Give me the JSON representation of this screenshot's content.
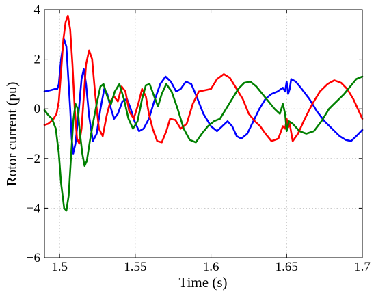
{
  "chart_data": {
    "type": "line",
    "xlabel": "Time (s)",
    "ylabel": "Rotor current  (pu)",
    "xlim": [
      1.49,
      1.7
    ],
    "ylim": [
      -6,
      4
    ],
    "grid": true,
    "x_ticks": [
      1.5,
      1.55,
      1.6,
      1.65,
      1.7
    ],
    "x_tick_labels": [
      "1.5",
      "1.55",
      "1.6",
      "1.65",
      "1.7"
    ],
    "y_ticks": [
      -6,
      -4,
      -2,
      0,
      2,
      4
    ],
    "y_tick_labels": [
      "−6",
      "−4",
      "−2",
      "0",
      "2",
      "4"
    ],
    "series": [
      {
        "color": "#0000ff",
        "points": [
          [
            1.49,
            0.7
          ],
          [
            1.494,
            0.75
          ],
          [
            1.497,
            0.8
          ],
          [
            1.4985,
            0.8
          ],
          [
            1.4995,
            1.0
          ],
          [
            1.501,
            2.0
          ],
          [
            1.503,
            2.8
          ],
          [
            1.5045,
            2.5
          ],
          [
            1.506,
            1.0
          ],
          [
            1.507,
            0.0
          ],
          [
            1.508,
            -1.2
          ],
          [
            1.509,
            -1.8
          ],
          [
            1.5105,
            -1.4
          ],
          [
            1.5125,
            -0.2
          ],
          [
            1.5145,
            1.2
          ],
          [
            1.516,
            1.6
          ],
          [
            1.5175,
            1.0
          ],
          [
            1.5195,
            -0.3
          ],
          [
            1.522,
            -1.3
          ],
          [
            1.5245,
            -1.0
          ],
          [
            1.527,
            0.0
          ],
          [
            1.5295,
            0.8
          ],
          [
            1.5315,
            0.6
          ],
          [
            1.5335,
            0.1
          ],
          [
            1.536,
            -0.4
          ],
          [
            1.5385,
            -0.2
          ],
          [
            1.5415,
            0.3
          ],
          [
            1.5445,
            0.4
          ],
          [
            1.547,
            0.0
          ],
          [
            1.5495,
            -0.5
          ],
          [
            1.5525,
            -0.9
          ],
          [
            1.5555,
            -0.8
          ],
          [
            1.559,
            -0.4
          ],
          [
            1.5625,
            0.3
          ],
          [
            1.5665,
            1.0
          ],
          [
            1.57,
            1.3
          ],
          [
            1.5735,
            1.1
          ],
          [
            1.577,
            0.7
          ],
          [
            1.58,
            0.8
          ],
          [
            1.5835,
            1.1
          ],
          [
            1.587,
            1.0
          ],
          [
            1.5905,
            0.5
          ],
          [
            1.595,
            -0.2
          ],
          [
            1.6,
            -0.7
          ],
          [
            1.604,
            -0.9
          ],
          [
            1.6075,
            -0.7
          ],
          [
            1.611,
            -0.5
          ],
          [
            1.614,
            -0.7
          ],
          [
            1.617,
            -1.1
          ],
          [
            1.62,
            -1.2
          ],
          [
            1.624,
            -1.0
          ],
          [
            1.628,
            -0.5
          ],
          [
            1.632,
            0.0
          ],
          [
            1.636,
            0.4
          ],
          [
            1.64,
            0.6
          ],
          [
            1.644,
            0.7
          ],
          [
            1.6475,
            0.85
          ],
          [
            1.649,
            0.7
          ],
          [
            1.65,
            1.1
          ],
          [
            1.651,
            0.6
          ],
          [
            1.652,
            0.8
          ],
          [
            1.653,
            1.2
          ],
          [
            1.656,
            1.1
          ],
          [
            1.66,
            0.8
          ],
          [
            1.665,
            0.4
          ],
          [
            1.67,
            -0.1
          ],
          [
            1.675,
            -0.5
          ],
          [
            1.68,
            -0.8
          ],
          [
            1.685,
            -1.1
          ],
          [
            1.689,
            -1.25
          ],
          [
            1.6925,
            -1.3
          ],
          [
            1.696,
            -1.1
          ],
          [
            1.7,
            -0.85
          ]
        ]
      },
      {
        "color": "#ff0000",
        "points": [
          [
            1.49,
            -0.65
          ],
          [
            1.4925,
            -0.6
          ],
          [
            1.4955,
            -0.45
          ],
          [
            1.498,
            -0.2
          ],
          [
            1.4995,
            0.3
          ],
          [
            1.501,
            1.5
          ],
          [
            1.5025,
            2.8
          ],
          [
            1.504,
            3.5
          ],
          [
            1.5055,
            3.75
          ],
          [
            1.507,
            3.2
          ],
          [
            1.5085,
            1.8
          ],
          [
            1.51,
            0.0
          ],
          [
            1.5115,
            -1.2
          ],
          [
            1.513,
            -1.4
          ],
          [
            1.5145,
            -0.8
          ],
          [
            1.516,
            0.5
          ],
          [
            1.5175,
            1.8
          ],
          [
            1.5195,
            2.35
          ],
          [
            1.5215,
            2.0
          ],
          [
            1.5235,
            0.6
          ],
          [
            1.526,
            -0.8
          ],
          [
            1.5285,
            -1.1
          ],
          [
            1.531,
            -0.3
          ],
          [
            1.5335,
            0.3
          ],
          [
            1.536,
            0.5
          ],
          [
            1.5385,
            0.3
          ],
          [
            1.541,
            0.9
          ],
          [
            1.5435,
            0.7
          ],
          [
            1.546,
            -0.1
          ],
          [
            1.549,
            -0.4
          ],
          [
            1.552,
            0.2
          ],
          [
            1.5545,
            0.8
          ],
          [
            1.557,
            0.5
          ],
          [
            1.559,
            -0.2
          ],
          [
            1.5615,
            -0.8
          ],
          [
            1.5645,
            -1.3
          ],
          [
            1.5675,
            -1.35
          ],
          [
            1.5705,
            -0.9
          ],
          [
            1.573,
            -0.4
          ],
          [
            1.5765,
            -0.45
          ],
          [
            1.58,
            -0.8
          ],
          [
            1.584,
            -0.6
          ],
          [
            1.588,
            0.2
          ],
          [
            1.592,
            0.7
          ],
          [
            1.596,
            0.75
          ],
          [
            1.6,
            0.8
          ],
          [
            1.604,
            1.2
          ],
          [
            1.6085,
            1.4
          ],
          [
            1.6125,
            1.25
          ],
          [
            1.617,
            0.8
          ],
          [
            1.621,
            0.4
          ],
          [
            1.625,
            -0.2
          ],
          [
            1.629,
            -0.5
          ],
          [
            1.6325,
            -0.7
          ],
          [
            1.636,
            -1.0
          ],
          [
            1.64,
            -1.3
          ],
          [
            1.6445,
            -1.2
          ],
          [
            1.6475,
            -0.7
          ],
          [
            1.649,
            -0.8
          ],
          [
            1.65,
            -0.4
          ],
          [
            1.651,
            -0.75
          ],
          [
            1.652,
            -0.6
          ],
          [
            1.654,
            -1.3
          ],
          [
            1.6575,
            -1.0
          ],
          [
            1.662,
            -0.4
          ],
          [
            1.667,
            0.2
          ],
          [
            1.672,
            0.7
          ],
          [
            1.677,
            1.0
          ],
          [
            1.6815,
            1.15
          ],
          [
            1.686,
            1.05
          ],
          [
            1.69,
            0.8
          ],
          [
            1.694,
            0.4
          ],
          [
            1.697,
            0.0
          ],
          [
            1.7,
            -0.4
          ]
        ]
      },
      {
        "color": "#008000",
        "points": [
          [
            1.49,
            -0.05
          ],
          [
            1.4925,
            -0.25
          ],
          [
            1.495,
            -0.4
          ],
          [
            1.4975,
            -0.8
          ],
          [
            1.4995,
            -1.8
          ],
          [
            1.501,
            -3.0
          ],
          [
            1.503,
            -4.0
          ],
          [
            1.5045,
            -4.1
          ],
          [
            1.506,
            -3.5
          ],
          [
            1.5075,
            -2.0
          ],
          [
            1.509,
            -0.5
          ],
          [
            1.5105,
            0.2
          ],
          [
            1.512,
            0.0
          ],
          [
            1.5135,
            -1.0
          ],
          [
            1.515,
            -1.8
          ],
          [
            1.5165,
            -2.3
          ],
          [
            1.518,
            -2.1
          ],
          [
            1.52,
            -1.3
          ],
          [
            1.522,
            -0.6
          ],
          [
            1.5245,
            0.2
          ],
          [
            1.527,
            0.9
          ],
          [
            1.529,
            1.0
          ],
          [
            1.5315,
            0.5
          ],
          [
            1.534,
            0.2
          ],
          [
            1.5365,
            0.7
          ],
          [
            1.5395,
            1.0
          ],
          [
            1.5425,
            0.4
          ],
          [
            1.5455,
            -0.4
          ],
          [
            1.5485,
            -0.8
          ],
          [
            1.5515,
            -0.5
          ],
          [
            1.5545,
            0.4
          ],
          [
            1.557,
            0.95
          ],
          [
            1.5595,
            1.0
          ],
          [
            1.5625,
            0.5
          ],
          [
            1.565,
            0.1
          ],
          [
            1.5675,
            0.6
          ],
          [
            1.5705,
            1.0
          ],
          [
            1.574,
            0.7
          ],
          [
            1.578,
            0.0
          ],
          [
            1.582,
            -0.8
          ],
          [
            1.586,
            -1.25
          ],
          [
            1.59,
            -1.35
          ],
          [
            1.594,
            -1.0
          ],
          [
            1.598,
            -0.7
          ],
          [
            1.602,
            -0.5
          ],
          [
            1.606,
            -0.4
          ],
          [
            1.61,
            0.0
          ],
          [
            1.614,
            0.4
          ],
          [
            1.618,
            0.8
          ],
          [
            1.622,
            1.05
          ],
          [
            1.626,
            1.1
          ],
          [
            1.63,
            0.9
          ],
          [
            1.634,
            0.6
          ],
          [
            1.638,
            0.3
          ],
          [
            1.642,
            0.0
          ],
          [
            1.6455,
            -0.2
          ],
          [
            1.6475,
            0.2
          ],
          [
            1.649,
            -0.2
          ],
          [
            1.65,
            -0.9
          ],
          [
            1.6515,
            -0.5
          ],
          [
            1.654,
            -0.6
          ],
          [
            1.6585,
            -0.9
          ],
          [
            1.663,
            -1.0
          ],
          [
            1.668,
            -0.9
          ],
          [
            1.673,
            -0.5
          ],
          [
            1.678,
            0.0
          ],
          [
            1.683,
            0.3
          ],
          [
            1.688,
            0.6
          ],
          [
            1.692,
            0.9
          ],
          [
            1.696,
            1.2
          ],
          [
            1.7,
            1.3
          ]
        ]
      }
    ]
  }
}
